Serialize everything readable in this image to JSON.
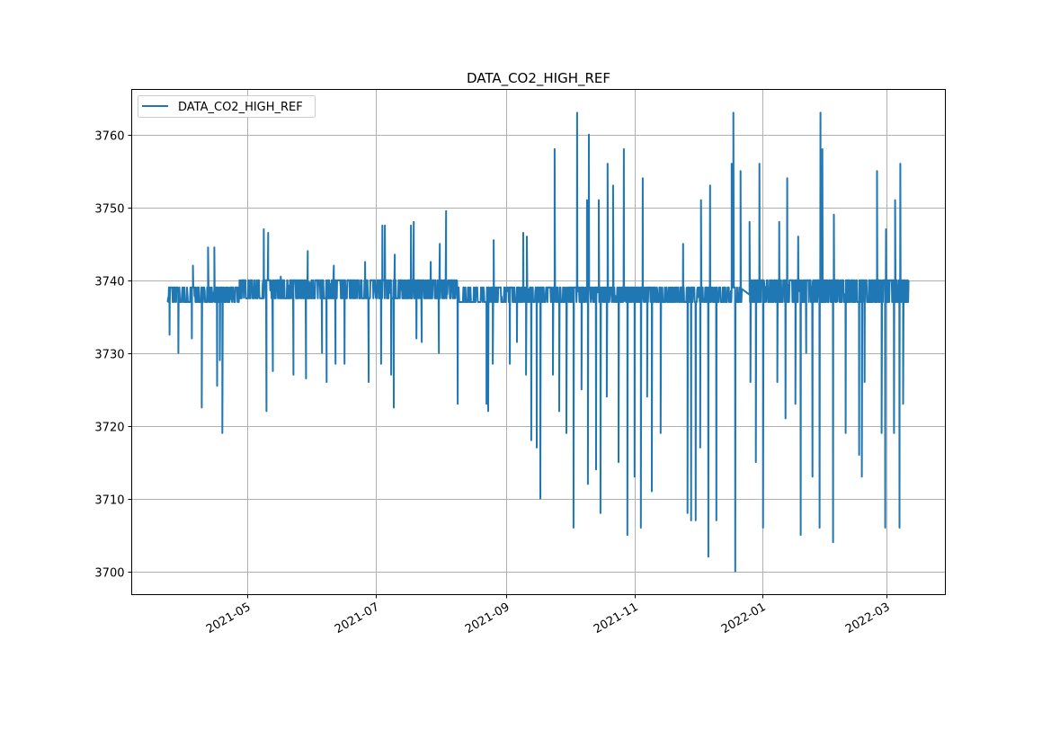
{
  "chart_data": {
    "type": "line",
    "title": "DATA_CO2_HIGH_REF",
    "xlabel": "",
    "ylabel": "",
    "x_start": "2021-03-24",
    "x_unit": "days since x_start",
    "xlim": [
      -17.1,
      369.8
    ],
    "ylim": [
      3696.8,
      3766.2
    ],
    "grid": true,
    "legend": {
      "placement": "upper-left",
      "entries": [
        "DATA_CO2_HIGH_REF"
      ]
    },
    "color": "#1f77b4",
    "x_ticks": [
      {
        "day": 38,
        "label": "2021-05"
      },
      {
        "day": 99,
        "label": "2021-07"
      },
      {
        "day": 161,
        "label": "2021-09"
      },
      {
        "day": 222,
        "label": "2021-11"
      },
      {
        "day": 283,
        "label": "2022-01"
      },
      {
        "day": 342,
        "label": "2022-03"
      }
    ],
    "y_ticks": [
      3700,
      3710,
      3720,
      3730,
      3740,
      3750,
      3760
    ],
    "baseline_segments": [
      {
        "start": 0,
        "end": 34,
        "low": 3737,
        "high": 3739
      },
      {
        "start": 34,
        "end": 138,
        "low": 3737.5,
        "high": 3740
      },
      {
        "start": 138,
        "end": 273,
        "low": 3737,
        "high": 3739
      },
      {
        "start": 276.7,
        "end": 352.3,
        "low": 3737,
        "high": 3740
      }
    ],
    "spikes": [
      [
        0.9,
        3732.5
      ],
      [
        5.1,
        3730
      ],
      [
        11.5,
        3732
      ],
      [
        12.0,
        3742
      ],
      [
        16.2,
        3722.5
      ],
      [
        19.2,
        3744.5
      ],
      [
        22.2,
        3744.5
      ],
      [
        23.5,
        3725.5
      ],
      [
        24.8,
        3729
      ],
      [
        26.0,
        3719
      ],
      [
        45.7,
        3747
      ],
      [
        47.0,
        3722
      ],
      [
        47.8,
        3746.5
      ],
      [
        50.0,
        3727.5
      ],
      [
        53.8,
        3740.5
      ],
      [
        59.8,
        3727
      ],
      [
        65.8,
        3726.5
      ],
      [
        66.6,
        3744
      ],
      [
        73.4,
        3730
      ],
      [
        75.6,
        3726
      ],
      [
        79.0,
        3742
      ],
      [
        79.8,
        3728.5
      ],
      [
        84.1,
        3728.5
      ],
      [
        93.9,
        3742.5
      ],
      [
        95.6,
        3726
      ],
      [
        101.5,
        3728.5
      ],
      [
        102.1,
        3747.5
      ],
      [
        103.3,
        3747.5
      ],
      [
        106.3,
        3727
      ],
      [
        107.5,
        3722.5
      ],
      [
        108.0,
        3743.5
      ],
      [
        115.7,
        3747.5
      ],
      [
        117.0,
        3748
      ],
      [
        118.3,
        3732
      ],
      [
        120.8,
        3731.5
      ],
      [
        125.1,
        3742.5
      ],
      [
        129.0,
        3730
      ],
      [
        129.4,
        3745
      ],
      [
        132.4,
        3749.5
      ],
      [
        137.9,
        3723
      ],
      [
        151.6,
        3723
      ],
      [
        152.4,
        3722
      ],
      [
        154.6,
        3728.5
      ],
      [
        155.0,
        3745.5
      ],
      [
        162.7,
        3728.5
      ],
      [
        166.1,
        3731.5
      ],
      [
        169.1,
        3746.5
      ],
      [
        170.4,
        3727
      ],
      [
        170.8,
        3746
      ],
      [
        172.9,
        3718
      ],
      [
        175.5,
        3717
      ],
      [
        177.2,
        3710
      ],
      [
        183.2,
        3727
      ],
      [
        184.0,
        3758
      ],
      [
        186.2,
        3722
      ],
      [
        189.6,
        3719
      ],
      [
        193.0,
        3706
      ],
      [
        194.7,
        3763
      ],
      [
        196.8,
        3725
      ],
      [
        199.4,
        3751
      ],
      [
        199.8,
        3712
      ],
      [
        200.3,
        3760
      ],
      [
        203.7,
        3714
      ],
      [
        205.0,
        3751
      ],
      [
        205.8,
        3708
      ],
      [
        208.8,
        3724
      ],
      [
        209.2,
        3756
      ],
      [
        211.8,
        3753
      ],
      [
        214.4,
        3715
      ],
      [
        216.9,
        3758
      ],
      [
        218.6,
        3705
      ],
      [
        222.0,
        3713
      ],
      [
        225.0,
        3706
      ],
      [
        225.9,
        3754
      ],
      [
        228.0,
        3724
      ],
      [
        230.2,
        3711
      ],
      [
        234.4,
        3719
      ],
      [
        245.1,
        3745
      ],
      [
        247.2,
        3708
      ],
      [
        248.9,
        3707
      ],
      [
        251.1,
        3707
      ],
      [
        253.2,
        3717
      ],
      [
        253.6,
        3751
      ],
      [
        257.1,
        3702
      ],
      [
        257.9,
        3753
      ],
      [
        260.9,
        3707
      ],
      [
        268.2,
        3756
      ],
      [
        269.0,
        3763
      ],
      [
        269.9,
        3700
      ],
      [
        272.4,
        3755
      ],
      [
        276.7,
        3748
      ],
      [
        277.1,
        3726
      ],
      [
        279.7,
        3715
      ],
      [
        281.4,
        3756
      ],
      [
        283.1,
        3706
      ],
      [
        289.9,
        3726
      ],
      [
        290.8,
        3748
      ],
      [
        293.8,
        3721
      ],
      [
        294.6,
        3754
      ],
      [
        298.5,
        3723
      ],
      [
        299.8,
        3746
      ],
      [
        301.0,
        3705
      ],
      [
        303.6,
        3730
      ],
      [
        306.6,
        3713
      ],
      [
        310.0,
        3706
      ],
      [
        310.4,
        3763
      ],
      [
        311.3,
        3758
      ],
      [
        316.4,
        3704
      ],
      [
        316.8,
        3749
      ],
      [
        322.4,
        3719
      ],
      [
        328.8,
        3716
      ],
      [
        330.1,
        3713
      ],
      [
        331.4,
        3726
      ],
      [
        337.3,
        3755
      ],
      [
        339.5,
        3719
      ],
      [
        341.2,
        3706
      ],
      [
        341.6,
        3747
      ],
      [
        345.4,
        3719
      ],
      [
        345.9,
        3751
      ],
      [
        348.0,
        3706
      ],
      [
        348.4,
        3756
      ],
      [
        349.7,
        3723
      ]
    ]
  }
}
